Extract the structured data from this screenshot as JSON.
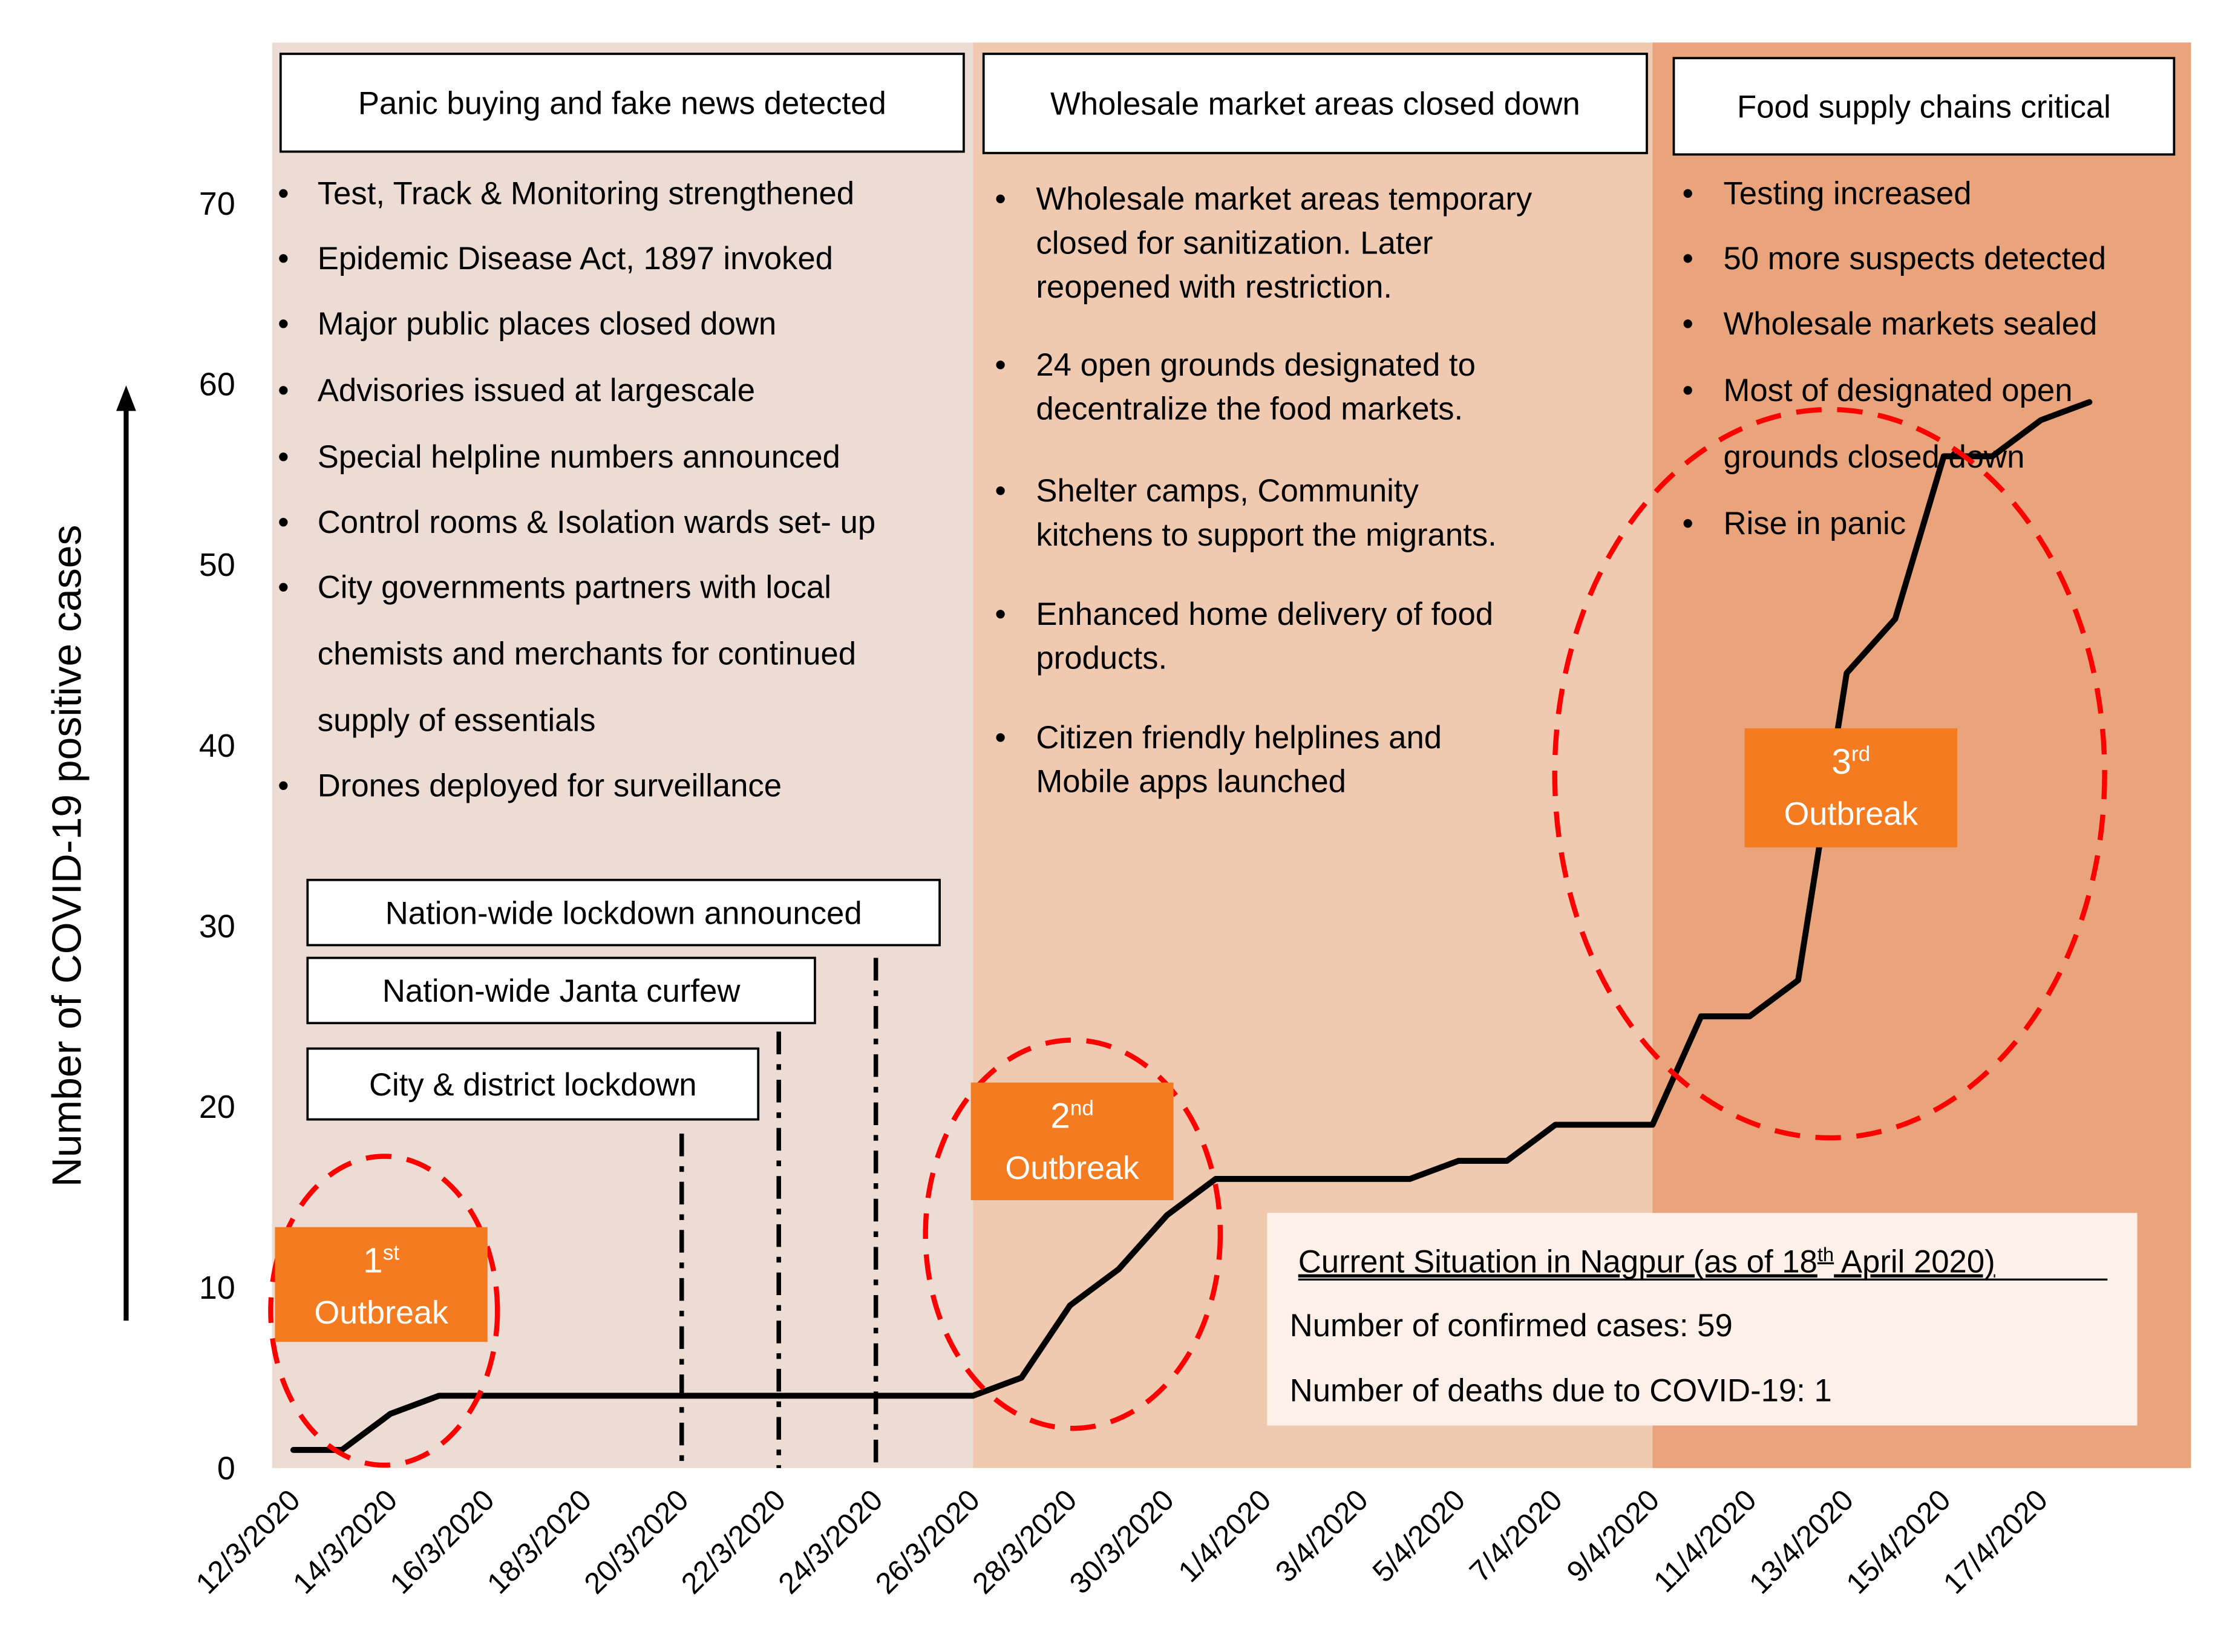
{
  "chart_data": {
    "type": "line",
    "ylabel": "Number of COVID-19 positive cases",
    "ylim": [
      0,
      70
    ],
    "yticks": [
      0,
      10,
      20,
      30,
      40,
      50,
      60,
      70
    ],
    "x_tick_labels": [
      "12/3/2020",
      "14/3/2020",
      "16/3/2020",
      "18/3/2020",
      "20/3/2020",
      "22/3/2020",
      "24/3/2020",
      "26/3/2020",
      "28/3/2020",
      "30/3/2020",
      "1/4/2020",
      "3/4/2020",
      "5/4/2020",
      "7/4/2020",
      "9/4/2020",
      "11/4/2020",
      "13/4/2020",
      "15/4/2020",
      "17/4/2020"
    ],
    "series": [
      {
        "x": [
          "12/3/2020",
          "13/3/2020",
          "14/3/2020",
          "15/3/2020",
          "16/3/2020",
          "17/3/2020",
          "18/3/2020",
          "19/3/2020",
          "20/3/2020",
          "21/3/2020",
          "22/3/2020",
          "23/3/2020",
          "24/3/2020",
          "25/3/2020",
          "26/3/2020",
          "27/3/2020",
          "28/3/2020",
          "29/3/2020",
          "30/3/2020",
          "31/3/2020",
          "1/4/2020",
          "2/4/2020",
          "3/4/2020",
          "4/4/2020",
          "5/4/2020",
          "6/4/2020",
          "7/4/2020",
          "8/4/2020",
          "9/4/2020",
          "10/4/2020",
          "11/4/2020",
          "12/4/2020",
          "13/4/2020",
          "14/4/2020",
          "15/4/2020",
          "16/4/2020",
          "17/4/2020",
          "18/4/2020"
        ],
        "values": [
          1,
          1,
          3,
          4,
          4,
          4,
          4,
          4,
          4,
          4,
          4,
          4,
          4,
          4,
          4,
          5,
          9,
          11,
          14,
          16,
          16,
          16,
          16,
          16,
          17,
          17,
          19,
          19,
          19,
          25,
          25,
          27,
          44,
          47,
          56,
          56,
          58,
          59
        ],
        "color": "#000000"
      }
    ],
    "phases": [
      {
        "from": "12/3/2020",
        "to": "26/3/2020",
        "color": "#eddcd3",
        "title": "Panic buying and fake news detected",
        "bullets": [
          "Test, Track & Monitoring strengthened",
          "Epidemic Disease Act, 1897 invoked",
          "Major public places closed down",
          "Advisories issued at largescale",
          "Special helpline numbers announced",
          "Control rooms & Isolation wards set- up",
          "City governments partners with local chemists and merchants for continued supply of essentials",
          "Drones deployed for surveillance"
        ]
      },
      {
        "from": "26/3/2020",
        "to": "9/4/2020",
        "color": "#efc9b0",
        "title": "Wholesale market areas closed down",
        "bullets": [
          "Wholesale market areas temporary closed for sanitization. Later reopened with restriction.",
          "24 open grounds designated to decentralize the food markets.",
          "Shelter camps, Community kitchens to support the migrants.",
          "Enhanced home delivery of food products.",
          "Citizen friendly helplines and Mobile apps launched"
        ]
      },
      {
        "from": "9/4/2020",
        "to": "18/4/2020",
        "color": "#e9a47c",
        "title": "Food supply chains critical",
        "bullets": [
          "Testing increased",
          "50 more suspects detected",
          "Wholesale markets sealed",
          "Most of designated open grounds closed down",
          "Rise in panic"
        ]
      }
    ],
    "events": [
      {
        "label": "City & district lockdown",
        "date": "20/3/2020"
      },
      {
        "label": "Nation-wide Janta curfew",
        "date": "22/3/2020"
      },
      {
        "label": "Nation-wide lockdown announced",
        "date": "24/3/2020"
      }
    ],
    "outbreaks": [
      {
        "num": "1",
        "sup": "st",
        "word": "Outbreak"
      },
      {
        "num": "2",
        "sup": "nd",
        "word": "Outbreak"
      },
      {
        "num": "3",
        "sup": "rd",
        "word": "Outbreak"
      }
    ],
    "situation": {
      "title_pre": "Current Situation in Nagpur (as of 18",
      "title_sup": "th",
      "title_post": " April 2020)",
      "lines": [
        "Number of confirmed cases: 59",
        "Number of deaths due to COVID-19: 1"
      ]
    },
    "colors": {
      "line": "#000000",
      "outbreak_box": "#f47b20",
      "outbreak_text": "#ffffff",
      "outbreak_circle": "#ff0000",
      "situation_box": "#fdf0e8",
      "axis_text": "#000000"
    }
  }
}
